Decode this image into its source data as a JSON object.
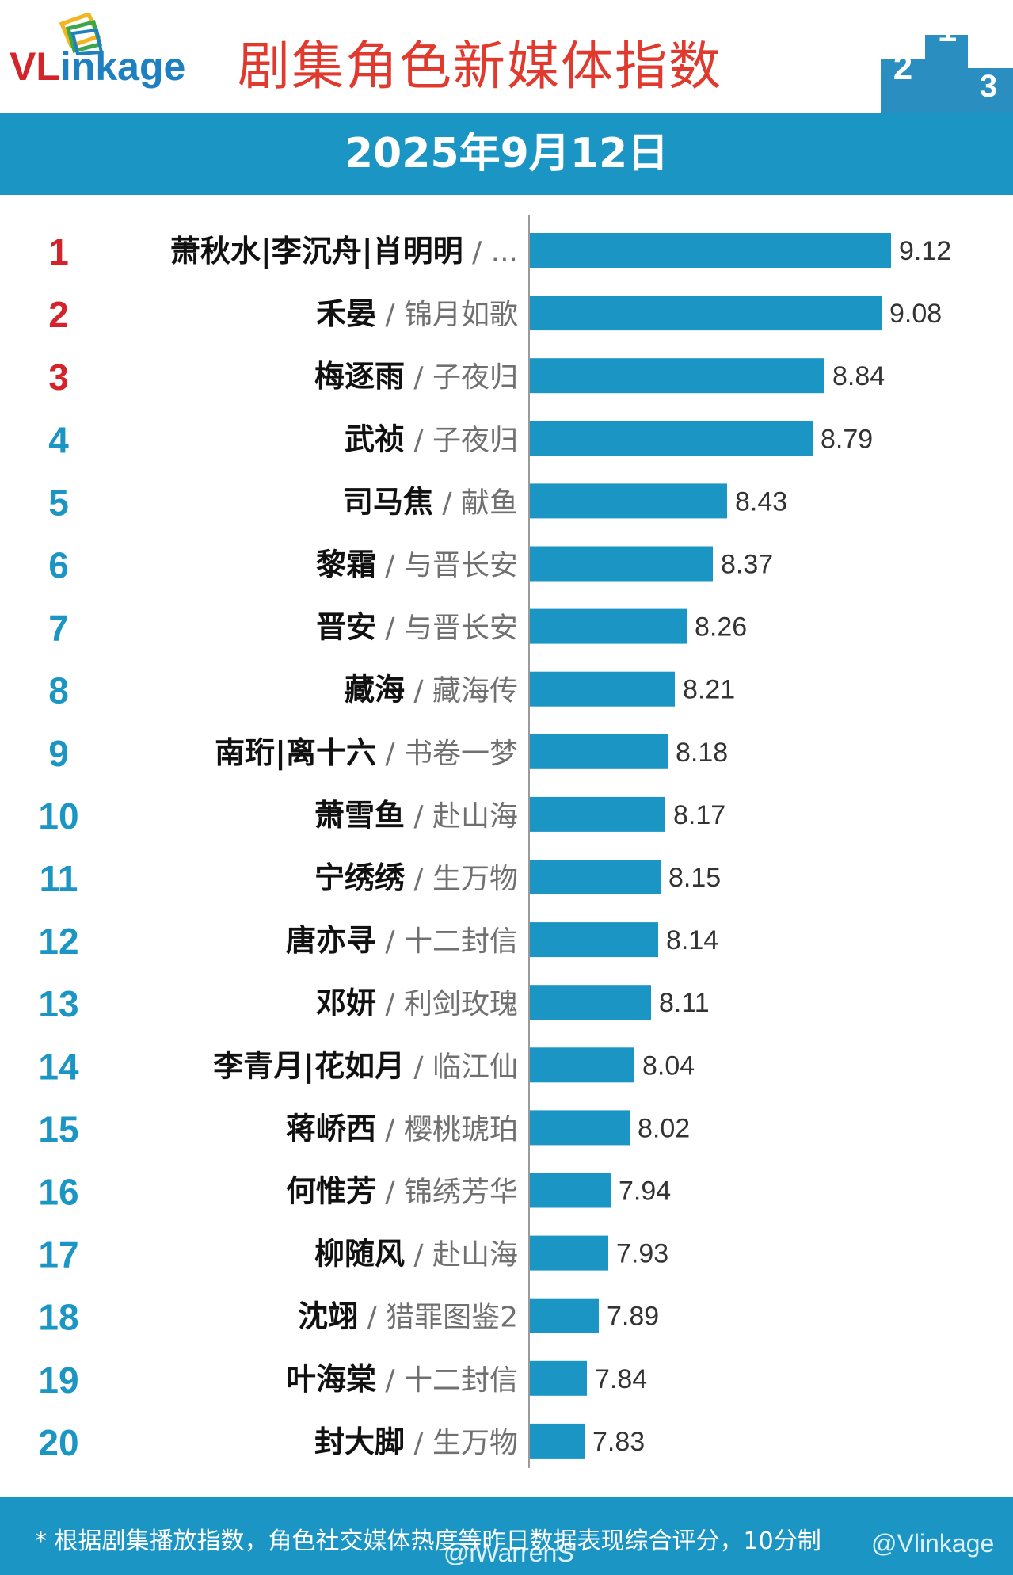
{
  "brand": {
    "logo_text_a": "VL",
    "logo_text_b": "inkage"
  },
  "title": "剧集角色新媒体指数",
  "date": "2025年9月12日",
  "colors": {
    "bar": "#1b95c4",
    "rank_top": "#d4242b",
    "rank_other": "#1b95c4",
    "title": "#e03a2f"
  },
  "chart_data": {
    "type": "bar",
    "orientation": "horizontal",
    "categories": [
      {
        "rank": "1",
        "role": "萧秋水|李沉舟|肖明明",
        "show": " / ..."
      },
      {
        "rank": "2",
        "role": "禾晏",
        "show": " / 锦月如歌"
      },
      {
        "rank": "3",
        "role": "梅逐雨",
        "show": " / 子夜归"
      },
      {
        "rank": "4",
        "role": "武祯",
        "show": " / 子夜归"
      },
      {
        "rank": "5",
        "role": "司马焦",
        "show": " / 献鱼"
      },
      {
        "rank": "6",
        "role": "黎霜",
        "show": " / 与晋长安"
      },
      {
        "rank": "7",
        "role": "晋安",
        "show": " / 与晋长安"
      },
      {
        "rank": "8",
        "role": "藏海",
        "show": " / 藏海传"
      },
      {
        "rank": "9",
        "role": "南珩|离十六",
        "show": " / 书卷一梦"
      },
      {
        "rank": "10",
        "role": "萧雪鱼",
        "show": " / 赴山海"
      },
      {
        "rank": "11",
        "role": "宁绣绣",
        "show": " / 生万物"
      },
      {
        "rank": "12",
        "role": "唐亦寻",
        "show": " / 十二封信"
      },
      {
        "rank": "13",
        "role": "邓妍",
        "show": " / 利剑玫瑰"
      },
      {
        "rank": "14",
        "role": "李青月|花如月",
        "show": " / 临江仙"
      },
      {
        "rank": "15",
        "role": "蒋峤西",
        "show": " / 樱桃琥珀"
      },
      {
        "rank": "16",
        "role": "何惟芳",
        "show": " / 锦绣芳华"
      },
      {
        "rank": "17",
        "role": "柳随风",
        "show": " / 赴山海"
      },
      {
        "rank": "18",
        "role": "沈翊",
        "show": " / 猎罪图鉴2"
      },
      {
        "rank": "19",
        "role": "叶海棠",
        "show": " / 十二封信"
      },
      {
        "rank": "20",
        "role": "封大脚",
        "show": " / 生万物"
      }
    ],
    "values": [
      9.12,
      9.08,
      8.84,
      8.79,
      8.43,
      8.37,
      8.26,
      8.21,
      8.18,
      8.17,
      8.15,
      8.14,
      8.11,
      8.04,
      8.02,
      7.94,
      7.93,
      7.89,
      7.84,
      7.83
    ],
    "value_labels": [
      "9.12",
      "9.08",
      "8.84",
      "8.79",
      "8.43",
      "8.37",
      "8.26",
      "8.21",
      "8.18",
      "8.17",
      "8.15",
      "8.14",
      "8.11",
      "8.04",
      "8.02",
      "7.94",
      "7.93",
      "7.89",
      "7.84",
      "7.83"
    ],
    "xlim": [
      7.6,
      9.12
    ],
    "grid": false,
    "legend": "none"
  },
  "footer": {
    "note": "* 根据剧集播放指数，角色社交媒体热度等昨日数据表现综合评分，10分制",
    "watermark_a": "@iWarrenS",
    "watermark_b": "@Vlinkage"
  }
}
